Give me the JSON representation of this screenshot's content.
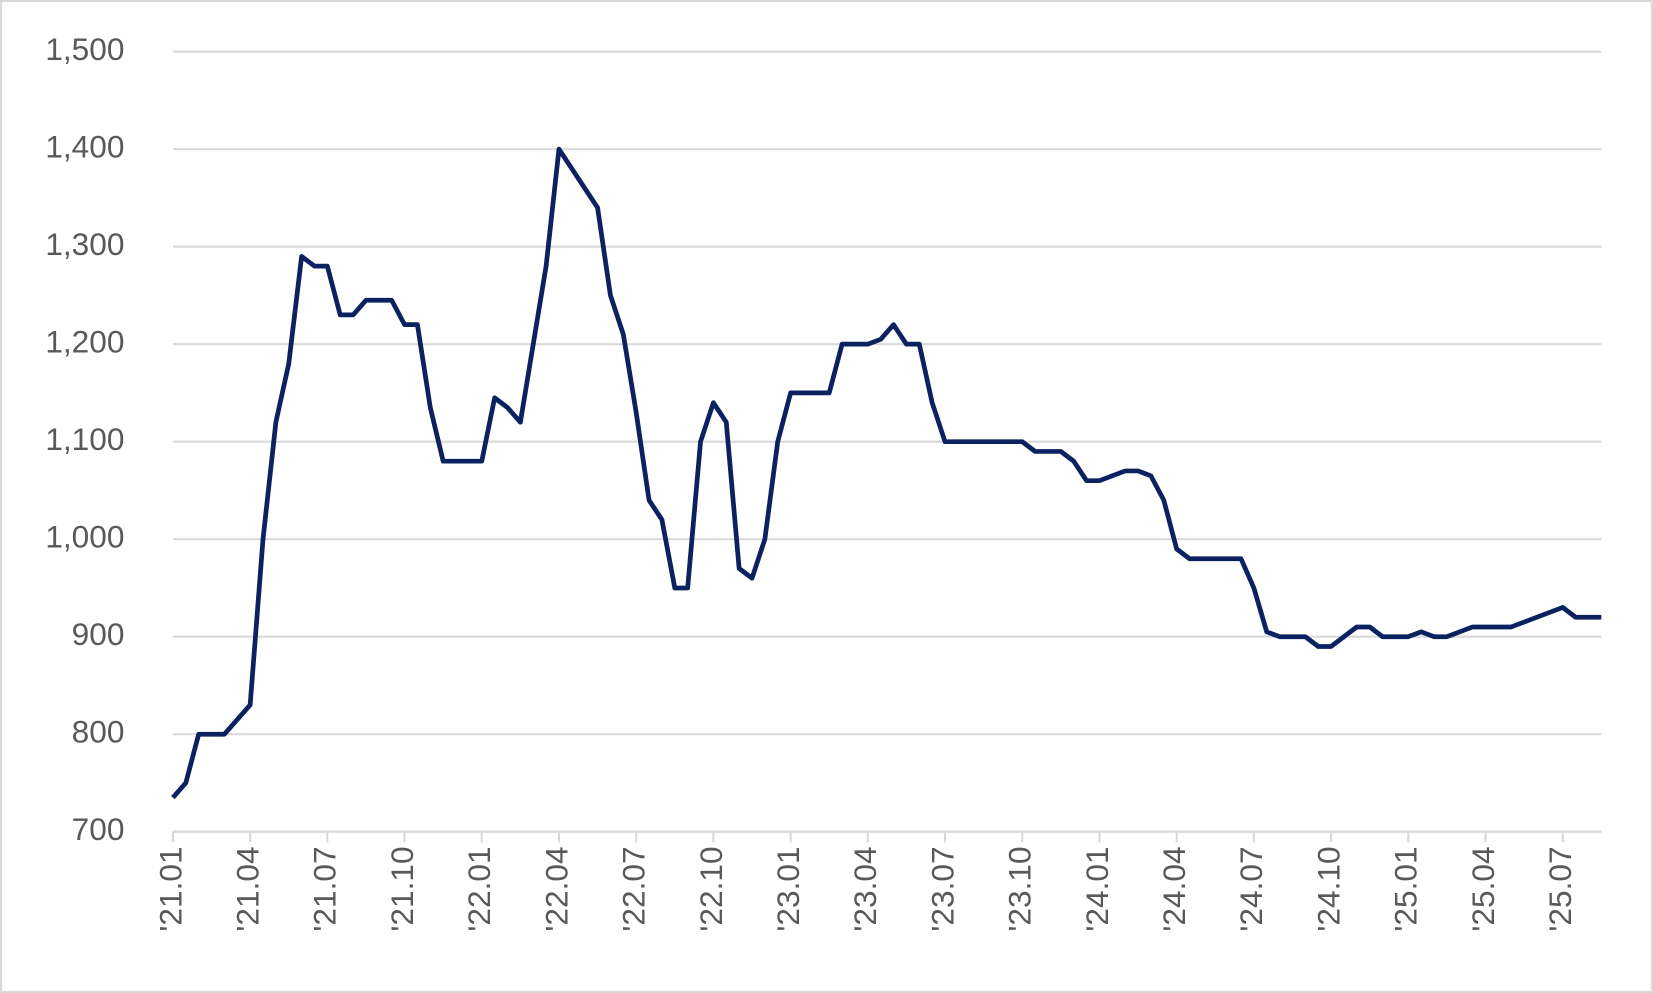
{
  "chart_data": {
    "type": "line",
    "categories": [
      "'21.01",
      null,
      null,
      null,
      null,
      null,
      "'21.04",
      null,
      null,
      null,
      null,
      null,
      "'21.07",
      null,
      null,
      null,
      null,
      null,
      "'21.10",
      null,
      null,
      null,
      null,
      null,
      "'22.01",
      null,
      null,
      null,
      null,
      null,
      "'22.04",
      null,
      null,
      null,
      null,
      null,
      "'22.07",
      null,
      null,
      null,
      null,
      null,
      "'22.10",
      null,
      null,
      null,
      null,
      null,
      "'23.01",
      null,
      null,
      null,
      null,
      null,
      "'23.04",
      null,
      null,
      null,
      null,
      null,
      "'23.07",
      null,
      null,
      null,
      null,
      null,
      "'23.10",
      null,
      null,
      null,
      null,
      null,
      "'24.01",
      null,
      null,
      null,
      null,
      null,
      "'24.04",
      null,
      null,
      null,
      null,
      null,
      "'24.07",
      null,
      null,
      null,
      null,
      null,
      "'24.10",
      null,
      null,
      null,
      null,
      null,
      "'25.01",
      null,
      null,
      null,
      null,
      null,
      "'25.04",
      null,
      null,
      null,
      null,
      null,
      "'25.07",
      null,
      null,
      null
    ],
    "series": [
      {
        "color": "#0b2260",
        "values": [
          735,
          750,
          800,
          800,
          800,
          815,
          830,
          1000,
          1120,
          1180,
          1290,
          1280,
          1280,
          1230,
          1230,
          1245,
          1245,
          1245,
          1220,
          1220,
          1135,
          1080,
          1080,
          1080,
          1080,
          1145,
          1135,
          1120,
          1200,
          1280,
          1400,
          1380,
          1360,
          1340,
          1250,
          1210,
          1130,
          1040,
          1020,
          950,
          950,
          1100,
          1140,
          1120,
          970,
          960,
          1000,
          1100,
          1150,
          1150,
          1150,
          1150,
          1200,
          1200,
          1200,
          1205,
          1220,
          1200,
          1200,
          1140,
          1100,
          1100,
          1100,
          1100,
          1100,
          1100,
          1100,
          1090,
          1090,
          1090,
          1080,
          1060,
          1060,
          1065,
          1070,
          1070,
          1065,
          1040,
          990,
          980,
          980,
          980,
          980,
          980,
          950,
          905,
          900,
          900,
          900,
          890,
          890,
          900,
          910,
          910,
          900,
          900,
          900,
          905,
          900,
          900,
          905,
          910,
          910,
          910,
          910,
          915,
          920,
          925,
          930,
          920,
          920,
          920
        ]
      }
    ],
    "ylim": [
      700,
      1500
    ],
    "yticks": [
      700,
      800,
      900,
      {
        "value": 1000,
        "label": "1,000"
      },
      {
        "value": 1100,
        "label": "1,100"
      },
      {
        "value": 1200,
        "label": "1,200"
      },
      {
        "value": 1300,
        "label": "1,300"
      },
      {
        "value": 1400,
        "label": "1,400"
      },
      {
        "value": 1500,
        "label": "1,500"
      }
    ],
    "grid": true
  }
}
